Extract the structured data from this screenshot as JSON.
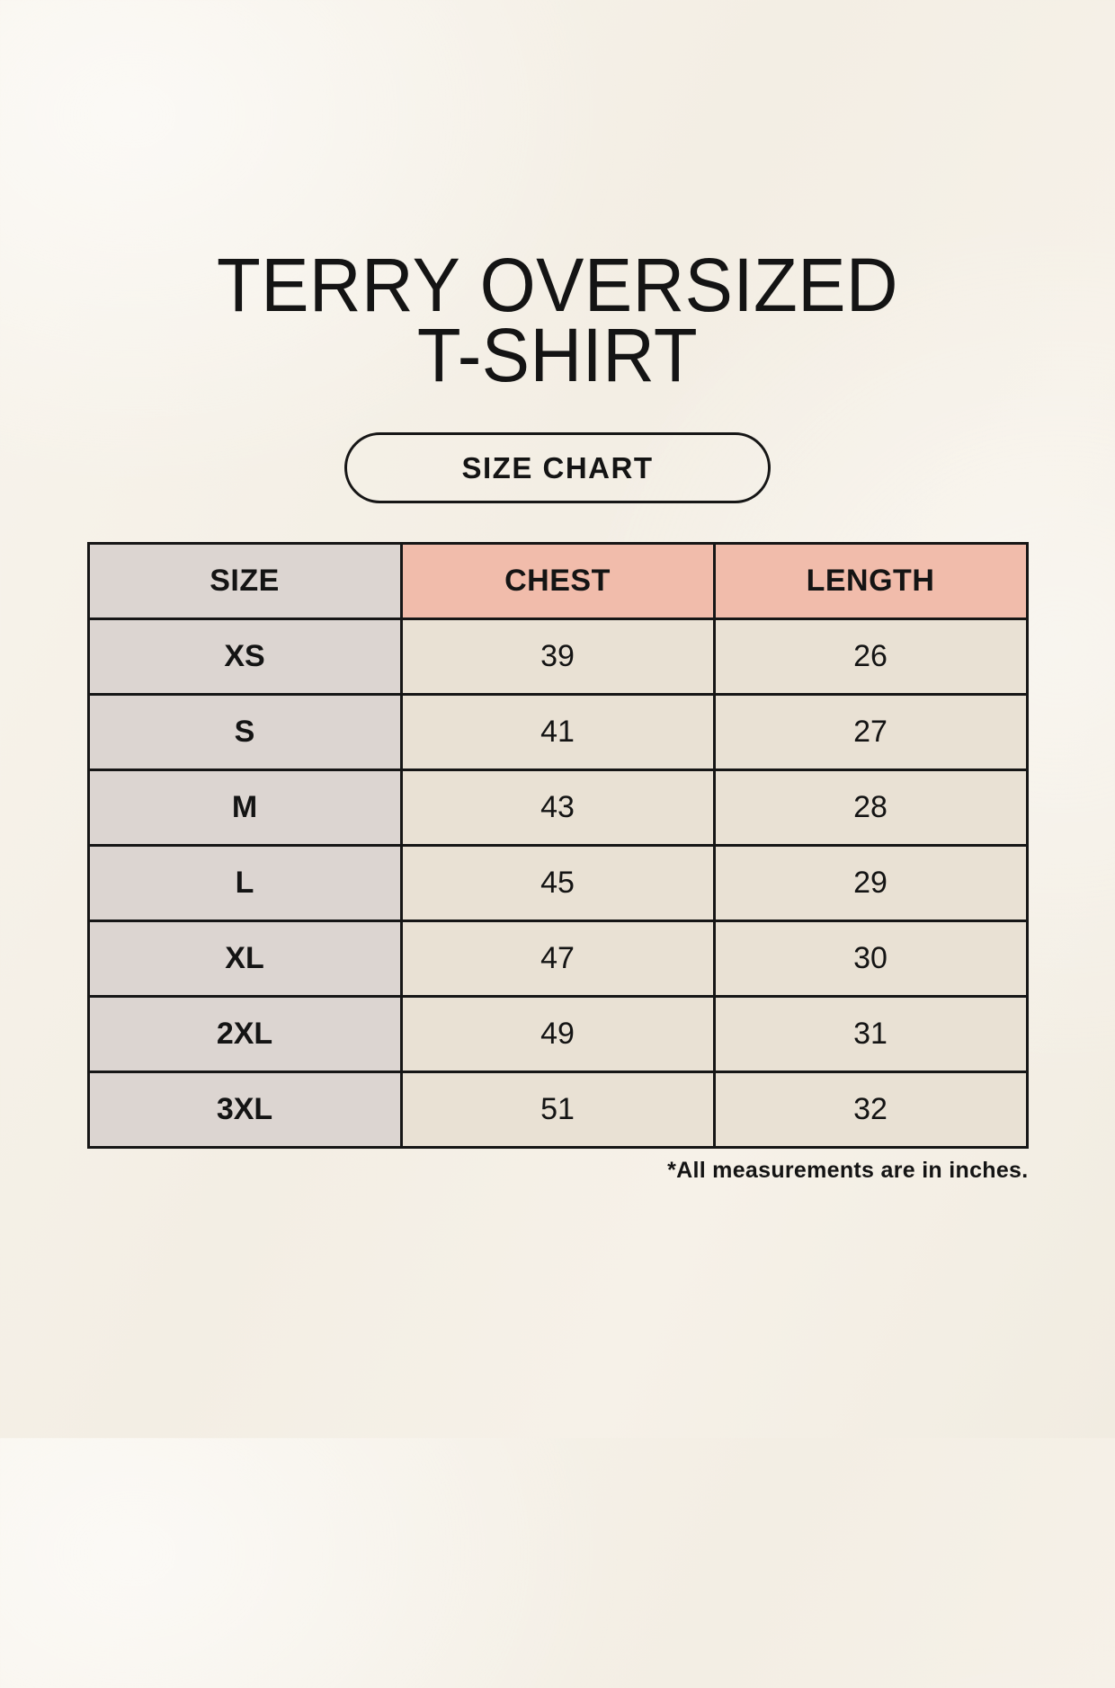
{
  "page": {
    "title_line1": "TERRY OVERSIZED",
    "title_line2": "T-SHIRT",
    "size_chart_button": "SIZE CHART",
    "footnote": "*All measurements are in inches."
  },
  "colors": {
    "background": "#f4efe6",
    "header_pink": "#f1bcab",
    "column_gray": "#dcd5d1",
    "cell_beige": "#e9e1d4",
    "border_black": "#161616"
  },
  "table": {
    "headers": [
      "SIZE",
      "CHEST",
      "LENGTH"
    ],
    "rows": [
      {
        "size": "XS",
        "chest": "39",
        "length": "26"
      },
      {
        "size": "S",
        "chest": "41",
        "length": "27"
      },
      {
        "size": "M",
        "chest": "43",
        "length": "28"
      },
      {
        "size": "L",
        "chest": "45",
        "length": "29"
      },
      {
        "size": "XL",
        "chest": "47",
        "length": "30"
      },
      {
        "size": "2XL",
        "chest": "49",
        "length": "31"
      },
      {
        "size": "3XL",
        "chest": "51",
        "length": "32"
      }
    ]
  },
  "chart_data": {
    "type": "table",
    "title": "TERRY OVERSIZED T-SHIRT",
    "subtitle": "SIZE CHART",
    "columns": [
      "SIZE",
      "CHEST",
      "LENGTH"
    ],
    "units": "inches",
    "rows": [
      [
        "XS",
        39,
        26
      ],
      [
        "S",
        41,
        27
      ],
      [
        "M",
        43,
        28
      ],
      [
        "L",
        45,
        29
      ],
      [
        "XL",
        47,
        30
      ],
      [
        "2XL",
        49,
        31
      ],
      [
        "3XL",
        51,
        32
      ]
    ],
    "annotations": [
      "*All measurements are in inches."
    ]
  }
}
